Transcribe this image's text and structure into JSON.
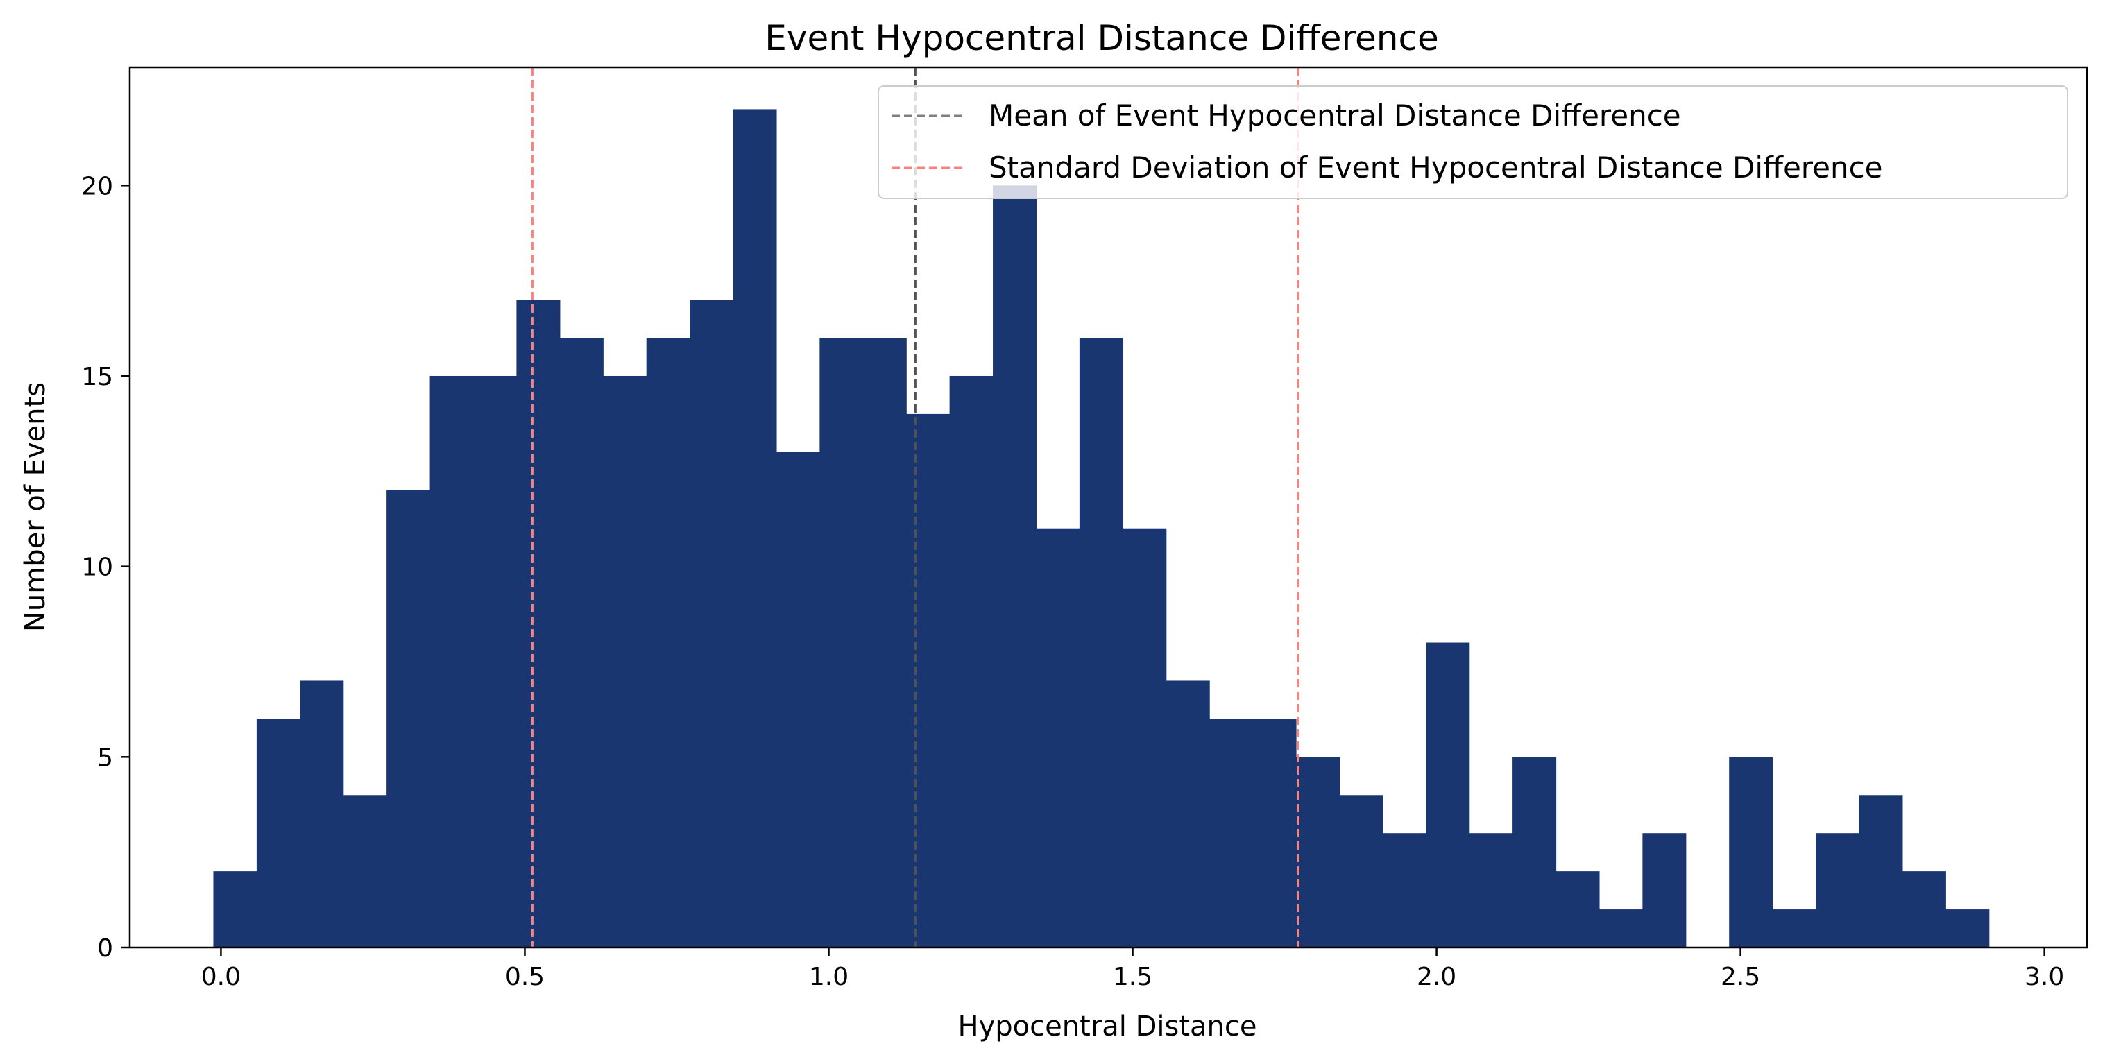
{
  "chart_data": {
    "type": "bar",
    "title": "Event Hypocentral Distance Difference",
    "xlabel": "Hypocentral Distance",
    "ylabel": "Number of Events",
    "xlim": [
      -0.15,
      3.07
    ],
    "ylim": [
      0,
      23.1
    ],
    "xticks": [
      0.0,
      0.5,
      1.0,
      1.5,
      2.0,
      2.5,
      3.0
    ],
    "xtick_labels": [
      "0.0",
      "0.5",
      "1.0",
      "1.5",
      "2.0",
      "2.5",
      "3.0"
    ],
    "yticks": [
      0,
      5,
      10,
      15,
      20
    ],
    "ytick_labels": [
      "0",
      "5",
      "10",
      "15",
      "20"
    ],
    "bin_start": -0.0125,
    "bin_width": 0.07125,
    "counts": [
      2,
      6,
      7,
      4,
      12,
      15,
      15,
      17,
      16,
      15,
      16,
      17,
      22,
      13,
      16,
      16,
      14,
      15,
      20,
      11,
      16,
      11,
      7,
      6,
      6,
      5,
      4,
      3,
      8,
      3,
      5,
      2,
      1,
      3,
      0,
      5,
      1,
      3,
      4,
      2,
      1
    ],
    "bar_color": "#1a3670",
    "mean": 1.1425,
    "std_lines": [
      0.5125,
      1.7725
    ],
    "mean_color": "#7f7f7f",
    "std_color": "#ff7f7f",
    "legend_position": "upper right",
    "legend": [
      "Mean of Event Hypocentral Distance Difference",
      "Standard Deviation of Event Hypocentral Distance Difference"
    ]
  }
}
